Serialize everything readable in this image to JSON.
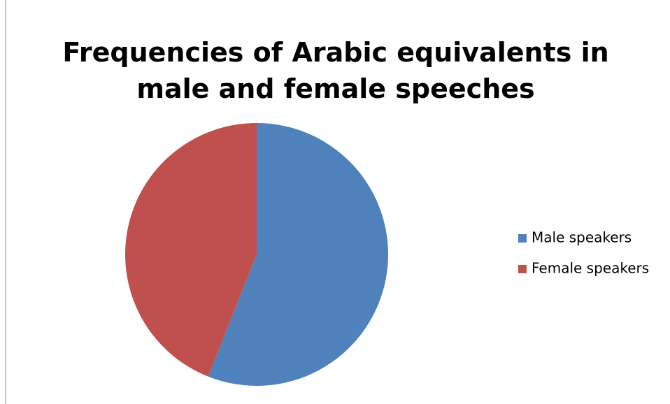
{
  "chart_data": {
    "type": "pie",
    "title": [
      "Frequencies of Arabic equivalents in",
      "male and female speeches"
    ],
    "categories": [
      "Male speakers",
      "Female speakers"
    ],
    "values": [
      56,
      44
    ],
    "colors": [
      "#4f81bd",
      "#c0504d"
    ],
    "legend": "right"
  }
}
